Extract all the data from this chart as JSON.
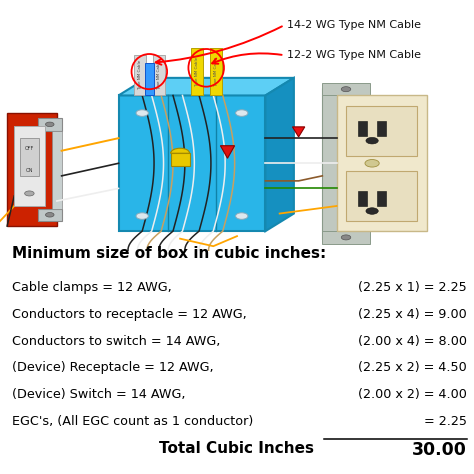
{
  "title": "Minimum size of box in cubic inches:",
  "rows": [
    {
      "label": "Cable clamps = 12 AWG,",
      "formula": "(2.25 x 1) = 2.25",
      "underline": false
    },
    {
      "label": "Conductors to receptacle = 12 AWG,",
      "formula": "(2.25 x 4) = 9.00",
      "underline": false
    },
    {
      "label": "Conductors to switch = 14 AWG,",
      "formula": "(2.00 x 4) = 8.00",
      "underline": false
    },
    {
      "label": "(Device) Receptacle = 12 AWG,",
      "formula": "(2.25 x 2) = 4.50",
      "underline": false
    },
    {
      "label": "(Device) Switch = 14 AWG,",
      "formula": "(2.00 x 2) = 4.00",
      "underline": false
    },
    {
      "label": "EGC's, (All EGC count as 1 conductor)",
      "formula": "= 2.25",
      "underline": true
    }
  ],
  "total_label": "Total Cubic Inches",
  "total_value": "30.00",
  "cable_label_1": "14-2 WG Type NM Cable",
  "cable_label_2": "12-2 WG Type NM Cable",
  "bg_color": "#ffffff",
  "title_color": "#000000",
  "text_color": "#000000",
  "formula_color": "#000000",
  "title_fontsize": 11.0,
  "row_fontsize": 9.2,
  "total_fontsize": 11.0,
  "fig_width": 4.74,
  "fig_height": 4.74,
  "dpi": 100
}
